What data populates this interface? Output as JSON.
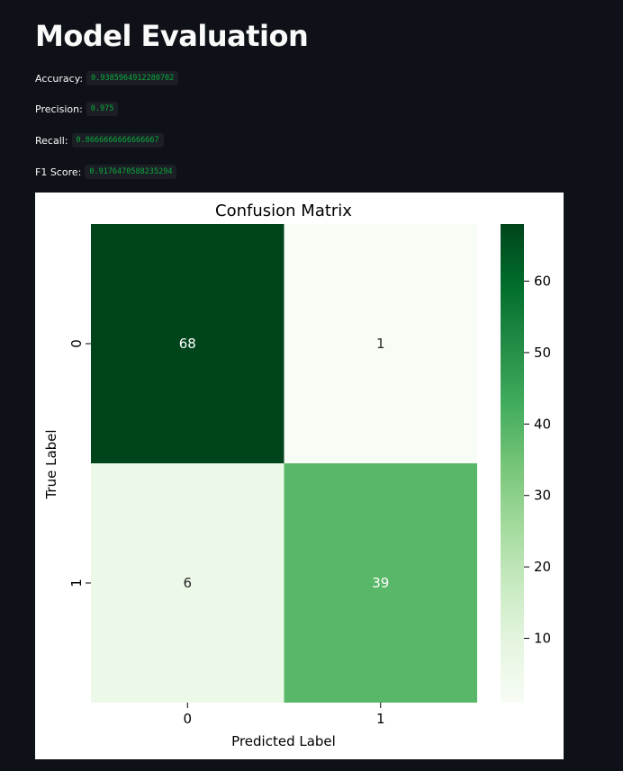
{
  "page": {
    "title": "Model Evaluation"
  },
  "metrics": [
    {
      "label": "Accuracy:",
      "value": "0.9385964912280702"
    },
    {
      "label": "Precision:",
      "value": "0.975"
    },
    {
      "label": "Recall:",
      "value": "0.8666666666666667"
    },
    {
      "label": "F1 Score:",
      "value": "0.9176470588235294"
    }
  ],
  "chart_data": {
    "type": "heatmap",
    "title": "Confusion Matrix",
    "xlabel": "Predicted Label",
    "ylabel": "True Label",
    "x_categories": [
      "0",
      "1"
    ],
    "y_categories": [
      "0",
      "1"
    ],
    "values": [
      [
        68,
        1
      ],
      [
        6,
        39
      ]
    ],
    "colormap": "Greens",
    "colorbar": {
      "range": [
        1,
        68
      ],
      "ticks": [
        10,
        20,
        30,
        40,
        50,
        60
      ]
    },
    "colors": {
      "low": "#f7fcf5",
      "high": "#00441b"
    },
    "grid": false,
    "legend": "colorbar-right"
  }
}
